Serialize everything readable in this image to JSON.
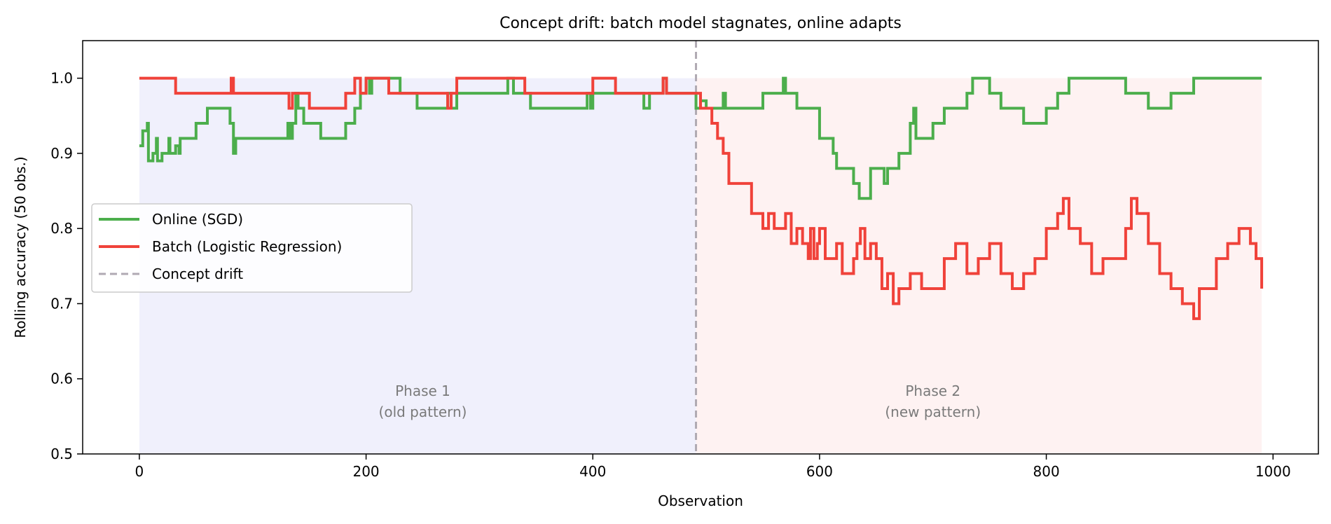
{
  "chart_data": {
    "type": "line",
    "title": "Concept drift: batch model stagnates, online adapts",
    "xlabel": "Observation",
    "ylabel": "Rolling accuracy (50 obs.)",
    "xlim": [
      -50,
      1040
    ],
    "ylim": [
      0.5,
      1.05
    ],
    "xticks": [
      0,
      200,
      400,
      600,
      800,
      1000
    ],
    "yticks": [
      0.5,
      0.6,
      0.7,
      0.8,
      0.9,
      1.0
    ],
    "xtick_labels": [
      "0",
      "200",
      "400",
      "600",
      "800",
      "1000"
    ],
    "ytick_labels": [
      "0.5",
      "0.6",
      "0.7",
      "0.8",
      "0.9",
      "1.0"
    ],
    "grid": false,
    "legend_position": "center-left",
    "drift_at": 491,
    "regions": [
      {
        "x_start": 0,
        "x_end": 491,
        "y_top": 1.0,
        "color": "#e9e9fb",
        "label_line1": "Phase 1",
        "label_line2": "(old pattern)",
        "label_x": 250,
        "label_y": 0.57
      },
      {
        "x_start": 491,
        "x_end": 990,
        "y_top": 1.0,
        "color": "#fdecec",
        "label_line1": "Phase 2",
        "label_line2": "(new pattern)",
        "label_x": 700,
        "label_y": 0.57
      }
    ],
    "series": [
      {
        "name": "Online (SGD)",
        "color": "#4cae4c",
        "style": "solid",
        "x": [
          0,
          3,
          7,
          8,
          12,
          15,
          16,
          20,
          26,
          27,
          32,
          35,
          36,
          40,
          50,
          55,
          57,
          60,
          65,
          68,
          70,
          80,
          83,
          85,
          87,
          90,
          100,
          110,
          120,
          130,
          131,
          133,
          135,
          138,
          140,
          145,
          150,
          160,
          170,
          180,
          182,
          185,
          190,
          192,
          195,
          200,
          203,
          205,
          210,
          220,
          230,
          240,
          245,
          250,
          260,
          270,
          272,
          275,
          280,
          290,
          300,
          310,
          320,
          325,
          328,
          330,
          340,
          345,
          350,
          360,
          370,
          380,
          390,
          395,
          398,
          400,
          405,
          410,
          420,
          440,
          445,
          450,
          460,
          462,
          465,
          470,
          480,
          491,
          495,
          500,
          510,
          515,
          517,
          520,
          525,
          530,
          540,
          550,
          560,
          565,
          568,
          570,
          575,
          580,
          590,
          600,
          605,
          610,
          612,
          615,
          620,
          625,
          630,
          635,
          640,
          645,
          650,
          655,
          657,
          660,
          665,
          670,
          680,
          683,
          685,
          690,
          700,
          710,
          720,
          730,
          735,
          740,
          750,
          760,
          770,
          780,
          790,
          800,
          810,
          820,
          830,
          840,
          850,
          860,
          870,
          880,
          890,
          900,
          910,
          920,
          930,
          940,
          950,
          960,
          970,
          980,
          990
        ],
        "y": [
          0.91,
          0.93,
          0.94,
          0.89,
          0.9,
          0.92,
          0.89,
          0.9,
          0.92,
          0.9,
          0.91,
          0.9,
          0.92,
          0.92,
          0.94,
          0.94,
          0.94,
          0.96,
          0.96,
          0.96,
          0.96,
          0.94,
          0.9,
          0.92,
          0.92,
          0.92,
          0.92,
          0.92,
          0.92,
          0.92,
          0.94,
          0.92,
          0.94,
          0.98,
          0.96,
          0.94,
          0.94,
          0.92,
          0.92,
          0.92,
          0.94,
          0.94,
          0.96,
          0.96,
          0.98,
          1.0,
          0.98,
          1.0,
          1.0,
          1.0,
          0.98,
          0.98,
          0.96,
          0.96,
          0.96,
          0.96,
          0.98,
          0.96,
          0.98,
          0.98,
          0.98,
          0.98,
          0.98,
          1.0,
          1.0,
          0.98,
          0.98,
          0.96,
          0.96,
          0.96,
          0.96,
          0.96,
          0.96,
          0.98,
          0.96,
          0.98,
          0.98,
          0.98,
          0.98,
          0.98,
          0.96,
          0.98,
          0.98,
          1.0,
          0.98,
          0.98,
          0.98,
          0.96,
          0.97,
          0.96,
          0.96,
          0.98,
          0.96,
          0.96,
          0.96,
          0.96,
          0.96,
          0.98,
          0.98,
          0.98,
          1.0,
          0.98,
          0.98,
          0.96,
          0.96,
          0.92,
          0.92,
          0.92,
          0.9,
          0.88,
          0.88,
          0.88,
          0.86,
          0.84,
          0.84,
          0.88,
          0.88,
          0.88,
          0.86,
          0.88,
          0.88,
          0.9,
          0.94,
          0.96,
          0.92,
          0.92,
          0.94,
          0.96,
          0.96,
          0.98,
          1.0,
          1.0,
          0.98,
          0.96,
          0.96,
          0.94,
          0.94,
          0.96,
          0.98,
          1.0,
          1.0,
          1.0,
          1.0,
          1.0,
          0.98,
          0.98,
          0.96,
          0.96,
          0.98,
          0.98,
          1.0,
          1.0,
          1.0,
          1.0,
          1.0,
          1.0,
          1.0
        ]
      },
      {
        "name": "Batch (Logistic Regression)",
        "color": "#f0423a",
        "style": "solid",
        "x": [
          0,
          30,
          32,
          40,
          80,
          81,
          83,
          85,
          130,
          132,
          135,
          140,
          150,
          180,
          182,
          185,
          190,
          195,
          200,
          210,
          220,
          240,
          260,
          270,
          272,
          275,
          280,
          300,
          320,
          340,
          360,
          380,
          400,
          410,
          420,
          440,
          445,
          450,
          460,
          462,
          465,
          470,
          480,
          490,
          495,
          500,
          505,
          510,
          515,
          520,
          530,
          540,
          550,
          555,
          560,
          565,
          570,
          575,
          580,
          585,
          590,
          592,
          595,
          598,
          600,
          605,
          610,
          615,
          620,
          625,
          630,
          633,
          636,
          640,
          645,
          650,
          655,
          660,
          665,
          670,
          680,
          690,
          700,
          710,
          720,
          730,
          740,
          750,
          760,
          770,
          780,
          790,
          800,
          810,
          815,
          820,
          830,
          840,
          850,
          860,
          870,
          875,
          880,
          890,
          900,
          910,
          920,
          930,
          935,
          940,
          950,
          960,
          970,
          980,
          985,
          990
        ],
        "y": [
          1.0,
          1.0,
          0.98,
          0.98,
          0.98,
          1.0,
          0.98,
          0.98,
          0.98,
          0.96,
          0.98,
          0.98,
          0.96,
          0.96,
          0.98,
          0.98,
          1.0,
          0.98,
          1.0,
          1.0,
          0.98,
          0.98,
          0.98,
          0.98,
          0.96,
          0.98,
          1.0,
          1.0,
          1.0,
          0.98,
          0.98,
          0.98,
          1.0,
          1.0,
          0.98,
          0.98,
          0.98,
          0.98,
          0.98,
          1.0,
          0.98,
          0.98,
          0.98,
          0.98,
          0.96,
          0.96,
          0.94,
          0.92,
          0.9,
          0.86,
          0.86,
          0.82,
          0.8,
          0.82,
          0.8,
          0.8,
          0.82,
          0.78,
          0.8,
          0.78,
          0.76,
          0.8,
          0.76,
          0.78,
          0.8,
          0.76,
          0.76,
          0.78,
          0.74,
          0.74,
          0.76,
          0.78,
          0.8,
          0.76,
          0.78,
          0.76,
          0.72,
          0.74,
          0.7,
          0.72,
          0.74,
          0.72,
          0.72,
          0.76,
          0.78,
          0.74,
          0.76,
          0.78,
          0.74,
          0.72,
          0.74,
          0.76,
          0.8,
          0.82,
          0.84,
          0.8,
          0.78,
          0.74,
          0.76,
          0.76,
          0.8,
          0.84,
          0.82,
          0.78,
          0.74,
          0.72,
          0.7,
          0.68,
          0.72,
          0.72,
          0.76,
          0.78,
          0.8,
          0.78,
          0.76,
          0.72
        ]
      },
      {
        "name": "Concept drift",
        "color": "#b0aab3",
        "style": "dashed"
      }
    ]
  }
}
